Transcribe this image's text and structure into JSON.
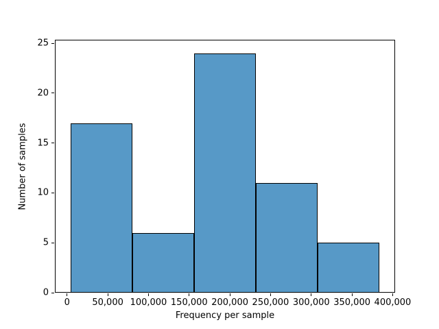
{
  "figure": {
    "background": "#ffffff"
  },
  "chart_data": {
    "type": "bar",
    "subtype": "histogram",
    "title": "",
    "xlabel": "Frequency per sample",
    "ylabel": "Number of samples",
    "bin_edges": [
      4000,
      80000,
      156000,
      232000,
      308000,
      384000
    ],
    "counts": [
      17,
      6,
      24,
      11,
      5
    ],
    "xlim": [
      -15000,
      403000
    ],
    "ylim": [
      0,
      25.35
    ],
    "x_ticks": [
      {
        "value": 0,
        "label": "0"
      },
      {
        "value": 50000,
        "label": "50,000"
      },
      {
        "value": 100000,
        "label": "100,000"
      },
      {
        "value": 150000,
        "label": "150,000"
      },
      {
        "value": 200000,
        "label": "200,000"
      },
      {
        "value": 250000,
        "label": "250,000"
      },
      {
        "value": 300000,
        "label": "300,000"
      },
      {
        "value": 350000,
        "label": "350,000"
      },
      {
        "value": 400000,
        "label": "400,000"
      }
    ],
    "y_ticks": [
      {
        "value": 0,
        "label": "0"
      },
      {
        "value": 5,
        "label": "5"
      },
      {
        "value": 10,
        "label": "10"
      },
      {
        "value": 15,
        "label": "15"
      },
      {
        "value": 20,
        "label": "20"
      },
      {
        "value": 25,
        "label": "25"
      }
    ],
    "grid": false,
    "legend": null,
    "colors": {
      "bar_fill": "#5799C7",
      "bar_edge": "#000000",
      "spine": "#000000",
      "text": "#000000"
    }
  }
}
